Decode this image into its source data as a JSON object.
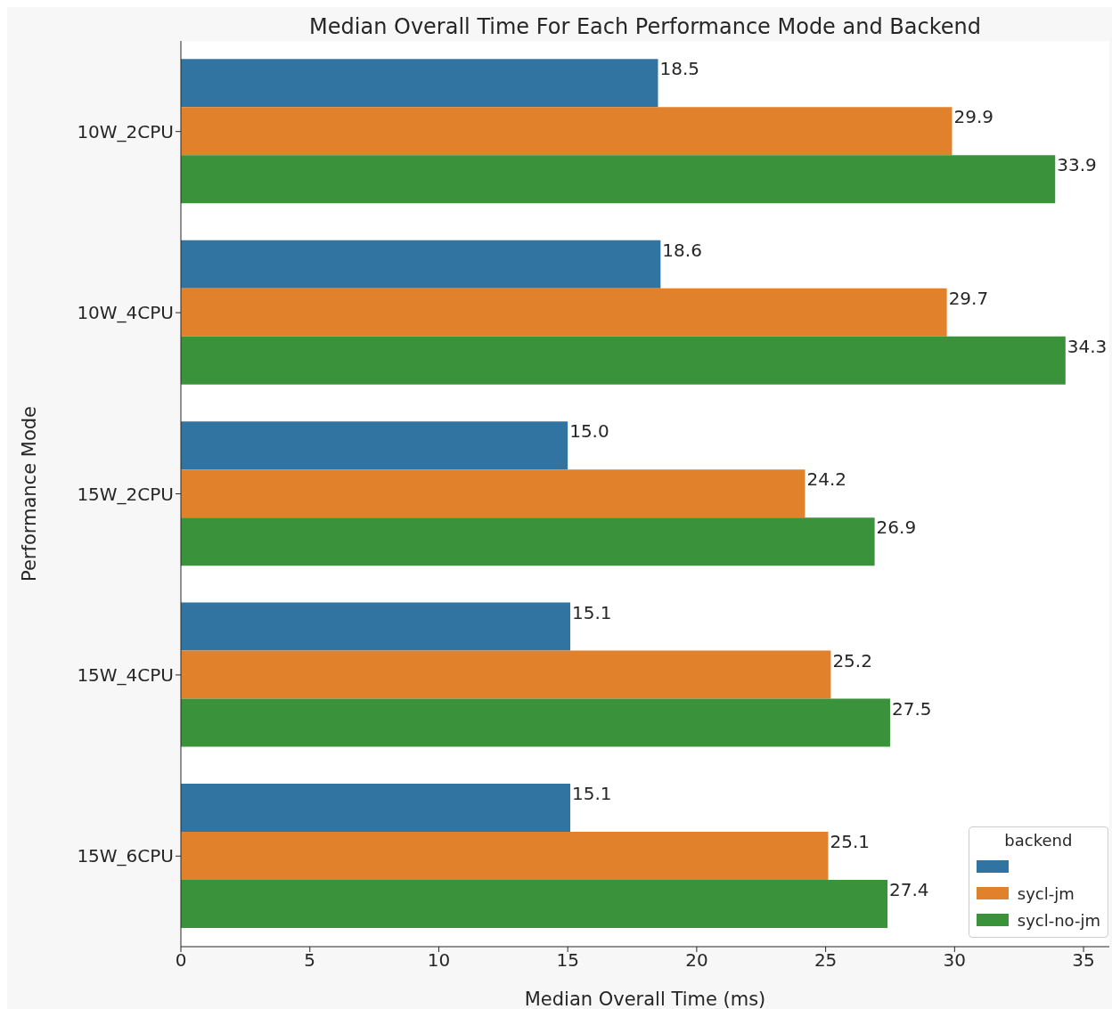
{
  "chart_data": {
    "type": "bar",
    "orientation": "horizontal",
    "title": "Median Overall Time For Each Performance Mode and Backend",
    "xlabel": "Median Overall Time (ms)",
    "ylabel": "Performance Mode",
    "legend_title": "backend",
    "legend": "bottom right",
    "categories": [
      "10W_2CPU",
      "10W_4CPU",
      "15W_2CPU",
      "15W_4CPU",
      "15W_6CPU"
    ],
    "xlim": [
      0,
      36
    ],
    "xticks": [
      0,
      5,
      10,
      15,
      20,
      25,
      30,
      35
    ],
    "series": [
      {
        "color": "#3274a1",
        "values": [
          18.5,
          18.6,
          15.0,
          15.1,
          15.1
        ],
        "value_labels": [
          "18.5",
          "18.6",
          "15.0",
          "15.1",
          "15.1"
        ]
      },
      {
        "name": "sycl-jm",
        "color": "#e1812c",
        "values": [
          29.9,
          29.7,
          24.2,
          25.2,
          25.1
        ],
        "value_labels": [
          "29.9",
          "29.7",
          "24.2",
          "25.2",
          "25.1"
        ]
      },
      {
        "name": "sycl-no-jm",
        "color": "#3a923a",
        "values": [
          33.9,
          34.3,
          26.9,
          27.5,
          27.4
        ],
        "value_labels": [
          "33.9",
          "34.3",
          "26.9",
          "27.5",
          "27.4"
        ]
      }
    ]
  }
}
